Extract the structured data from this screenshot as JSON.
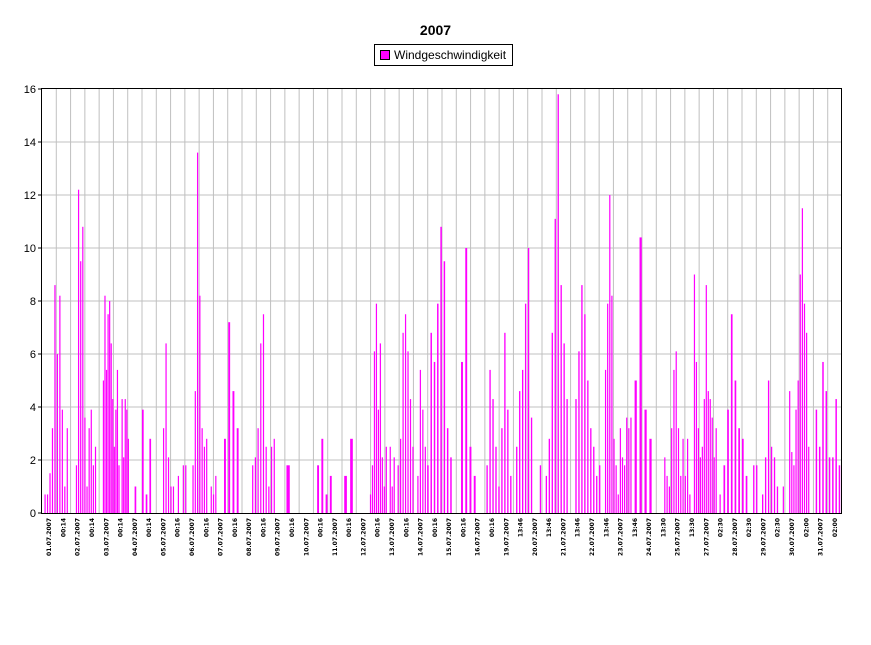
{
  "chart_data": {
    "type": "bar",
    "title": "2007",
    "xlabel": "",
    "ylabel": "",
    "ylim": [
      0,
      16
    ],
    "yticks": [
      0,
      2,
      4,
      6,
      8,
      10,
      12,
      14,
      16
    ],
    "grid": true,
    "legend_position": "top-center",
    "series": [
      {
        "name": "Windgeschwindigkeit",
        "color": "#ff00ff"
      }
    ],
    "x_tick_labels": [
      "01.07.2007",
      "00:14",
      "02.07.2007",
      "00:14",
      "03.07.2007",
      "00:14",
      "04.07.2007",
      "00:14",
      "05.07.2007",
      "00:16",
      "06.07.2007",
      "00:16",
      "07.07.2007",
      "00:16",
      "08.07.2007",
      "00:16",
      "09.07.2007",
      "00:16",
      "10.07.2007",
      "00:16",
      "11.07.2007",
      "00:16",
      "12.07.2007",
      "00:16",
      "13.07.2007",
      "00:16",
      "14.07.2007",
      "00:16",
      "15.07.2007",
      "00:16",
      "16.07.2007",
      "00:16",
      "19.07.2007",
      "13:46",
      "20.07.2007",
      "13:46",
      "21.07.2007",
      "13:46",
      "22.07.2007",
      "13:46",
      "23.07.2007",
      "13:46",
      "24.07.2007",
      "13:30",
      "25.07.2007",
      "13:30",
      "27.07.2007",
      "02:30",
      "28.07.2007",
      "02:30",
      "29.07.2007",
      "02:30",
      "30.07.2007",
      "02:00",
      "31.07.2007",
      "02:00"
    ],
    "bar_groups": [
      [
        0.0,
        [
          0.0,
          0.7,
          0.7,
          1.5,
          3.2,
          8.6,
          6.0,
          8.2,
          3.9,
          1.0,
          3.2,
          0.0
        ]
      ],
      [
        1.0,
        [
          0.0,
          0.0,
          1.8,
          12.2,
          9.5,
          10.8,
          3.6,
          1.0,
          3.2,
          3.9,
          1.8,
          2.5,
          0.0,
          0.0
        ]
      ],
      [
        2.0,
        [
          0.0,
          5.0,
          8.2,
          5.4,
          7.5,
          8.0,
          6.4,
          4.3,
          2.5,
          3.9,
          5.4,
          1.8,
          0.0,
          4.3,
          2.1,
          4.3,
          3.9,
          2.8,
          0.0
        ]
      ],
      [
        3.0,
        [
          0.0,
          1.0,
          0.0,
          3.9,
          0.7,
          2.8,
          0.0,
          0.0
        ]
      ],
      [
        4.0,
        [
          0.0,
          3.2,
          6.4,
          2.1,
          1.0,
          1.0,
          0.0,
          1.4,
          0.0,
          1.8,
          1.8,
          0.0
        ]
      ],
      [
        5.0,
        [
          0.0,
          1.8,
          4.6,
          13.6,
          8.2,
          3.2,
          2.5,
          2.8,
          0.0,
          1.0,
          0.7,
          1.4,
          0.0
        ]
      ],
      [
        6.0,
        [
          0.0,
          2.8,
          7.2,
          4.6,
          3.2,
          0.0,
          0.0
        ]
      ],
      [
        7.0,
        [
          0.0,
          1.8,
          2.1,
          3.2,
          6.4,
          7.5,
          2.5,
          1.0,
          2.5,
          2.8,
          0.0
        ]
      ],
      [
        8.0,
        [
          0.0,
          1.8,
          0.0,
          0.0
        ]
      ],
      [
        9.0,
        [
          0.0,
          0.0,
          1.8,
          2.8,
          0.7,
          1.4,
          0.0
        ]
      ],
      [
        10.0,
        [
          0.0,
          1.4,
          2.8,
          0.0,
          0.0
        ]
      ],
      [
        11.0,
        [
          0.0,
          0.7,
          1.8,
          6.1,
          7.9,
          3.9,
          6.4,
          2.1,
          1.0,
          2.5,
          0.0,
          2.5,
          1.0,
          2.1,
          0.0
        ]
      ],
      [
        12.0,
        [
          1.8,
          2.8,
          6.8,
          7.5,
          6.1,
          4.3,
          2.5,
          0.0,
          1.4,
          5.4,
          3.9,
          2.5
        ]
      ],
      [
        13.0,
        [
          1.8,
          6.8,
          5.7,
          7.9,
          10.8,
          9.5,
          3.2,
          2.1,
          0.0
        ]
      ],
      [
        14.0,
        [
          0.0,
          5.7,
          10.0,
          2.5,
          1.4,
          0.0,
          0.0
        ]
      ],
      [
        15.0,
        [
          1.8,
          5.4,
          4.3,
          2.5,
          1.0,
          3.2,
          6.8,
          3.9,
          1.4,
          0.0
        ]
      ],
      [
        16.0,
        [
          2.5,
          4.6,
          5.4,
          7.9,
          10.0,
          3.6,
          0.0,
          0.0,
          1.8,
          0.0
        ]
      ],
      [
        17.0,
        [
          1.4,
          2.8,
          6.8,
          11.1,
          15.8,
          8.6,
          6.4,
          4.3,
          0.0,
          0.0
        ]
      ],
      [
        18.0,
        [
          4.3,
          6.1,
          8.6,
          7.5,
          5.0,
          3.2,
          2.5,
          1.4,
          1.8,
          0.0
        ]
      ],
      [
        19.0,
        [
          5.4,
          7.9,
          12.0,
          8.2,
          2.8,
          1.8,
          0.7,
          3.2,
          2.1,
          1.8,
          3.6,
          3.2,
          3.6,
          0.0
        ]
      ],
      [
        20.0,
        [
          5.0,
          10.4,
          3.9,
          2.8,
          0.0,
          0.0
        ]
      ],
      [
        21.0,
        [
          2.1,
          1.4,
          1.0,
          3.2,
          5.4,
          6.1,
          3.2,
          1.4,
          2.8,
          1.4,
          2.8,
          0.7,
          0.0
        ]
      ],
      [
        22.0,
        [
          9.0,
          5.7,
          3.2,
          2.1,
          2.5,
          4.3,
          8.6,
          4.6,
          4.3,
          3.6,
          2.1,
          3.2,
          0.0,
          0.7,
          0.0
        ]
      ],
      [
        23.0,
        [
          1.8,
          3.9,
          7.5,
          5.0,
          3.2,
          2.8,
          1.4,
          0.0
        ]
      ],
      [
        24.0,
        [
          1.8,
          1.8,
          0.0,
          0.7,
          2.1,
          5.0,
          2.5,
          2.1,
          1.0,
          0.0
        ]
      ],
      [
        25.0,
        [
          1.0,
          0.0,
          0.0,
          4.6,
          2.3,
          1.8,
          3.9,
          5.0,
          9.0,
          11.5,
          7.9,
          6.8,
          2.5,
          0.0
        ]
      ],
      [
        26.0,
        [
          0.0,
          3.9,
          2.5,
          5.7,
          4.6,
          2.1,
          2.1,
          4.3,
          1.8
        ]
      ]
    ]
  }
}
